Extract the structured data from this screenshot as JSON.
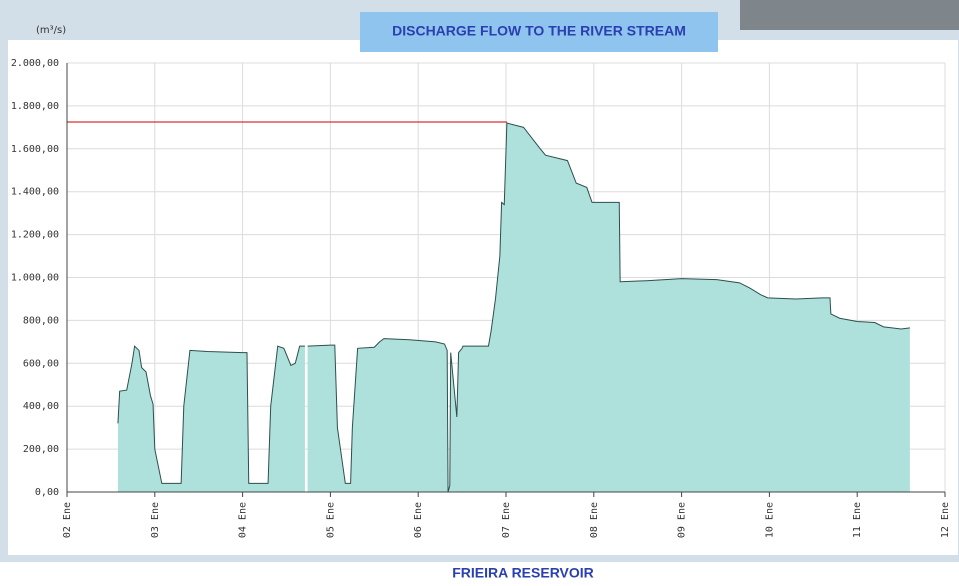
{
  "chart_data": {
    "type": "area",
    "title": "DISCHARGE FLOW TO THE RIVER STREAM",
    "y_label": "(m³/s)",
    "footer": "FRIEIRA RESERVOIR",
    "x": [
      2.58,
      2.6,
      2.68,
      2.74,
      2.77,
      2.82,
      2.85,
      2.9,
      2.95,
      2.98,
      3.0,
      3.08,
      3.15,
      3.3,
      3.33,
      3.4,
      3.6,
      4.0,
      4.05,
      4.07,
      4.29,
      4.32,
      4.4,
      4.47,
      4.55,
      4.6,
      4.65,
      4.71,
      4.72,
      4.74,
      5.0,
      5.05,
      5.08,
      5.17,
      5.23,
      5.25,
      5.31,
      5.5,
      5.56,
      5.61,
      5.9,
      6.2,
      6.3,
      6.33,
      6.34,
      6.36,
      6.37,
      6.44,
      6.46,
      6.5,
      6.51,
      6.8,
      6.83,
      6.88,
      6.93,
      6.95,
      6.98,
      7.01,
      7.2,
      7.39,
      7.45,
      7.7,
      7.8,
      7.92,
      7.98,
      8.29,
      8.3,
      8.6,
      9.0,
      9.4,
      9.66,
      9.78,
      9.9,
      9.98,
      10.3,
      10.6,
      10.69,
      10.7,
      10.8,
      11.0,
      11.2,
      11.3,
      11.5,
      11.6
    ],
    "values": [
      320,
      470,
      475,
      600,
      680,
      660,
      580,
      560,
      450,
      410,
      200,
      40,
      40,
      40,
      400,
      660,
      655,
      650,
      650,
      40,
      40,
      400,
      680,
      670,
      590,
      600,
      680,
      680,
      null,
      680,
      685,
      685,
      300,
      40,
      40,
      300,
      670,
      675,
      700,
      715,
      710,
      700,
      690,
      660,
      0,
      30,
      650,
      350,
      650,
      670,
      680,
      680,
      750,
      900,
      1100,
      1350,
      1340,
      1720,
      1700,
      1600,
      1570,
      1545,
      1440,
      1420,
      1350,
      1350,
      980,
      985,
      995,
      990,
      975,
      950,
      920,
      905,
      900,
      905,
      905,
      830,
      810,
      795,
      790,
      770,
      760,
      765
    ],
    "color": "#aee0dc",
    "line_color": "#2d4f4c",
    "reference_line": {
      "y": 1725,
      "x": [
        2,
        7.01
      ],
      "color": "#cc0000"
    },
    "xlim": [
      2,
      12
    ],
    "xticks": [
      {
        "value": 2,
        "label": "02 Ene"
      },
      {
        "value": 3,
        "label": "03 Ene"
      },
      {
        "value": 4,
        "label": "04 Ene"
      },
      {
        "value": 5,
        "label": "05 Ene"
      },
      {
        "value": 6,
        "label": "06 Ene"
      },
      {
        "value": 7,
        "label": "07 Ene"
      },
      {
        "value": 8,
        "label": "08 Ene"
      },
      {
        "value": 9,
        "label": "09 Ene"
      },
      {
        "value": 10,
        "label": "10 Ene"
      },
      {
        "value": 11,
        "label": "11 Ene"
      },
      {
        "value": 12,
        "label": "12 Ene"
      }
    ],
    "ylim": [
      0,
      2000
    ],
    "yticks": [
      {
        "value": 0,
        "label": "0,00"
      },
      {
        "value": 200,
        "label": "200,00"
      },
      {
        "value": 400,
        "label": "400,00"
      },
      {
        "value": 600,
        "label": "600,00"
      },
      {
        "value": 800,
        "label": "800,00"
      },
      {
        "value": 1000,
        "label": "1.000,00"
      },
      {
        "value": 1200,
        "label": "1.200,00"
      },
      {
        "value": 1400,
        "label": "1.400,00"
      },
      {
        "value": 1600,
        "label": "1.600,00"
      },
      {
        "value": 1800,
        "label": "1.800,00"
      },
      {
        "value": 2000,
        "label": "2.000,00"
      }
    ],
    "grid": true
  }
}
